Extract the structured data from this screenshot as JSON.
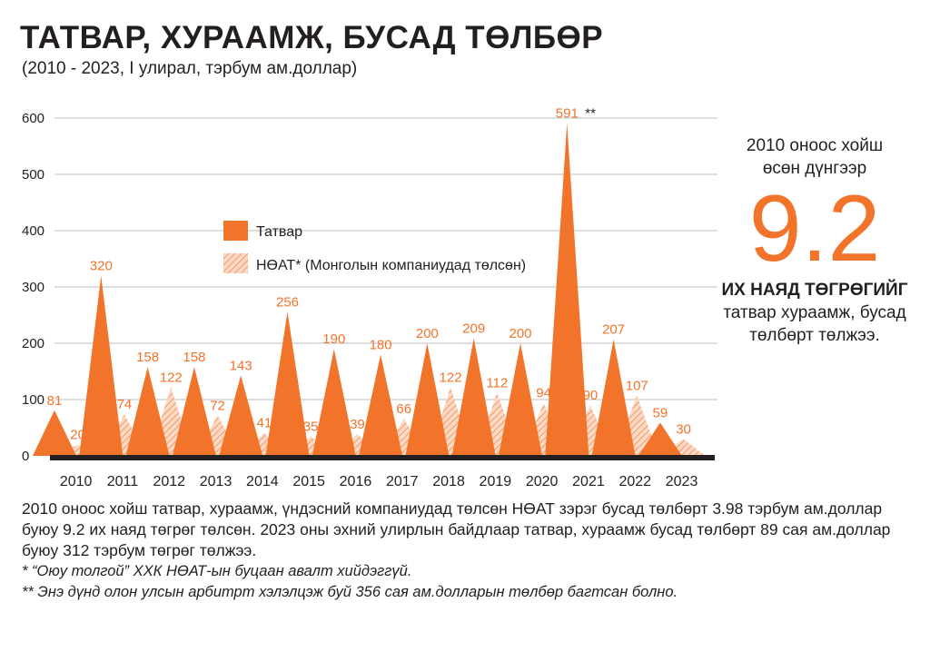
{
  "title": "ТАТВАР, ХУРААМЖ, БУСАД ТӨЛБӨР",
  "subtitle": "(2010 - 2023, I улирал, тэрбум ам.доллар)",
  "colors": {
    "tax": "#f2732a",
    "vat": "#f7b894",
    "text": "#231f20",
    "axis": "#231f20"
  },
  "chart_data": {
    "type": "area",
    "categories": [
      "2010",
      "2011",
      "2012",
      "2013",
      "2014",
      "2015",
      "2016",
      "2017",
      "2018",
      "2019",
      "2020",
      "2021",
      "2022",
      "2023"
    ],
    "ylim": [
      0,
      600
    ],
    "yticks": [
      "0",
      "100",
      "200",
      "300",
      "400",
      "500",
      "600"
    ],
    "legend_position": "top-left",
    "series": [
      {
        "name": "Татвар",
        "values": [
          81,
          320,
          158,
          158,
          143,
          256,
          190,
          180,
          200,
          209,
          200,
          591,
          207,
          59
        ],
        "labels": [
          "81",
          "320",
          "158",
          "158",
          "143",
          "256",
          "190",
          "180",
          "200",
          "209",
          "200",
          "591",
          "207",
          "59"
        ]
      },
      {
        "name": "НӨАТ* (Монголын компаниудад төлсөн)",
        "values": [
          20,
          74,
          122,
          72,
          41,
          35,
          39,
          66,
          122,
          112,
          94,
          90,
          107,
          30
        ],
        "labels": [
          "20",
          "74",
          "122",
          "72",
          "41",
          "35",
          "39",
          "66",
          "122",
          "112",
          "94",
          "90",
          "107",
          "30"
        ]
      }
    ],
    "annotation": "**"
  },
  "side_note": {
    "line1": "2010 оноос хойш",
    "line2": "өсөн дүнгээр",
    "value": "9.2",
    "strong": "ИХ НАЯД ТӨГРӨГИЙГ",
    "line3": "татвар хураамж, бусад",
    "line4": "төлбөрт төлжээ."
  },
  "footnotes": {
    "main": "2010 оноос хойш татвар, хураамж, үндэсний компаниудад төлсөн НӨАТ зэрэг бусад төлбөрт 3.98 тэрбум ам.доллар буюу 9.2 их наяд төгрөг төлсөн. 2023 оны эхний улирлын байдлаар татвар, хураамж бусад төлбөрт 89 сая ам.доллар буюу 312 тэрбум төгрөг төлжээ.",
    "note1": "* “Оюу толгой” ХХК НӨАТ-ын буцаан авалт хийдэггүй.",
    "note2": "** Энэ дүнд олон улсын арбитрт хэлэлцэж буй 356 сая ам.долларын төлбөр багтсан болно."
  }
}
